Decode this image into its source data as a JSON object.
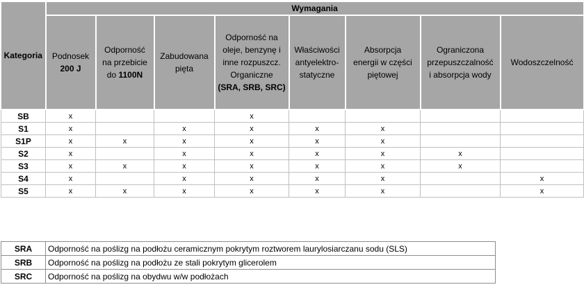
{
  "header": {
    "category": "Kategoria",
    "requirements": "Wymagania",
    "columns": [
      {
        "lines": [
          {
            "t": "Podnosek",
            "b": false
          },
          {
            "t": "200 J",
            "b": true
          }
        ]
      },
      {
        "lines": [
          {
            "t": "Odporność",
            "b": false
          },
          {
            "t": "na przebicie",
            "b": false
          },
          {
            "t": "do ",
            "b": false,
            "bold_suffix": "1100N"
          }
        ]
      },
      {
        "lines": [
          {
            "t": "Zabudowana",
            "b": false
          },
          {
            "t": "pięta",
            "b": false
          }
        ]
      },
      {
        "lines": [
          {
            "t": "Odporność na",
            "b": false
          },
          {
            "t": "oleje, benzynę i",
            "b": false
          },
          {
            "t": "inne rozpuszcz.",
            "b": false
          },
          {
            "t": "Organiczne",
            "b": false
          },
          {
            "t": "(SRA, SRB, SRC)",
            "b": true
          }
        ]
      },
      {
        "lines": [
          {
            "t": "Właściwości",
            "b": false
          },
          {
            "t": "antyelektro-",
            "b": false
          },
          {
            "t": "statyczne",
            "b": false
          }
        ]
      },
      {
        "lines": [
          {
            "t": "Absorpcja",
            "b": false
          },
          {
            "t": "energii w części",
            "b": false
          },
          {
            "t": "piętowej",
            "b": false
          }
        ]
      },
      {
        "lines": [
          {
            "t": "Ograniczona",
            "b": false
          },
          {
            "t": "przepuszczalność",
            "b": false
          },
          {
            "t": "i absorpcja wody",
            "b": false
          }
        ]
      },
      {
        "lines": [
          {
            "t": "Wodoszczelność",
            "b": false
          }
        ]
      }
    ]
  },
  "rows": [
    {
      "cat": "SB",
      "marks": [
        "x",
        "",
        "",
        "x",
        "",
        "",
        "",
        ""
      ]
    },
    {
      "cat": "S1",
      "marks": [
        "x",
        "",
        "x",
        "x",
        "x",
        "x",
        "",
        ""
      ]
    },
    {
      "cat": "S1P",
      "marks": [
        "x",
        "x",
        "x",
        "x",
        "x",
        "x",
        "",
        ""
      ]
    },
    {
      "cat": "S2",
      "marks": [
        "x",
        "",
        "x",
        "x",
        "x",
        "x",
        "x",
        ""
      ]
    },
    {
      "cat": "S3",
      "marks": [
        "x",
        "x",
        "x",
        "x",
        "x",
        "x",
        "x",
        ""
      ]
    },
    {
      "cat": "S4",
      "marks": [
        "x",
        "",
        "x",
        "x",
        "x",
        "x",
        "",
        "x"
      ]
    },
    {
      "cat": "S5",
      "marks": [
        "x",
        "x",
        "x",
        "x",
        "x",
        "x",
        "",
        "x"
      ]
    }
  ],
  "legend": [
    {
      "code": "SRA",
      "desc": "Odporność na poślizg na podłożu ceramicznym pokrytym roztworem laurylosiarczanu sodu (SLS)"
    },
    {
      "code": "SRB",
      "desc": "Odporność na poślizg na podłożu ze stali pokrytym glicerolem"
    },
    {
      "code": "SRC",
      "desc": "Odporność na poślizg na obydwu w/w podłożach"
    }
  ]
}
